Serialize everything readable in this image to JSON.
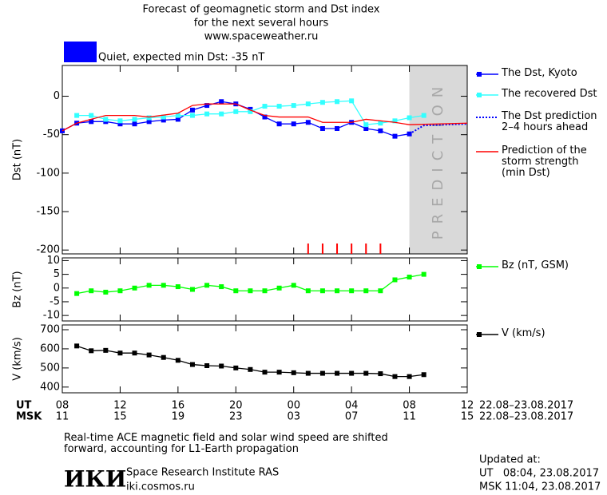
{
  "title": [
    "Forecast of geomagnetic storm and Dst index",
    "for the next several hours",
    "www.spaceweather.ru"
  ],
  "status": {
    "label": "Quiet, expected min Dst: -35 nT",
    "color": "#0000ff"
  },
  "chart_data": [
    {
      "type": "line",
      "y_label": "Dst (nT)",
      "xlim": [
        0,
        28
      ],
      "ylim": [
        -205,
        40
      ],
      "yticks": [
        0,
        -50,
        -100,
        -150,
        -200
      ],
      "prediction_region": {
        "xlim": [
          24,
          28
        ],
        "label": "PREDICTION",
        "color": "#d9d9d9"
      },
      "markers": {
        "color": "#ff0000",
        "x": [
          17,
          18,
          19,
          20,
          21,
          22
        ]
      },
      "series": [
        {
          "name": "The Dst, Kyoto",
          "color": "#0000ff",
          "marker": "square",
          "dash": "solid",
          "x": [
            0,
            1,
            2,
            3,
            4,
            5,
            6,
            7,
            8,
            9,
            10,
            11,
            12,
            13,
            14,
            15,
            16,
            17,
            18,
            19,
            20,
            21,
            22,
            23,
            24
          ],
          "values": [
            -45,
            -35,
            -33,
            -33,
            -36,
            -36,
            -33,
            -31,
            -30,
            -18,
            -12,
            -7,
            -10,
            -17,
            -27,
            -36,
            -36,
            -34,
            -42,
            -42,
            -34,
            -42,
            -45,
            -52,
            -49
          ]
        },
        {
          "name": "The recovered Dst",
          "color": "#33ffff",
          "marker": "square",
          "dash": "solid",
          "x": [
            1,
            2,
            3,
            4,
            5,
            6,
            7,
            8,
            9,
            10,
            11,
            12,
            13,
            14,
            15,
            16,
            17,
            18,
            19,
            20,
            21,
            22,
            23,
            24,
            25
          ],
          "values": [
            -25,
            -25,
            -30,
            -32,
            -30,
            -28,
            -27,
            -25,
            -25,
            -23,
            -23,
            -20,
            -20,
            -13,
            -13,
            -12,
            -10,
            -8,
            -7,
            -6,
            -37,
            -35,
            -32,
            -28,
            -25
          ]
        },
        {
          "name": "The Dst prediction\n2–4 hours ahead",
          "color": "#0000ff",
          "marker": "none",
          "dash": "dotted",
          "x": [
            24,
            25,
            28
          ],
          "values": [
            -49,
            -38,
            -36
          ]
        },
        {
          "name": "Prediction of the\nstorm strength\n(min Dst)",
          "color": "#ff0000",
          "marker": "none",
          "dash": "solid",
          "x": [
            0,
            1,
            2,
            3,
            5,
            6,
            8,
            9,
            10,
            12,
            13,
            14,
            15,
            17,
            18,
            20,
            21,
            23,
            24,
            28
          ],
          "values": [
            -45,
            -35,
            -30,
            -25,
            -25,
            -27,
            -22,
            -12,
            -10,
            -10,
            -18,
            -25,
            -27,
            -27,
            -34,
            -34,
            -30,
            -34,
            -37,
            -35
          ]
        }
      ]
    },
    {
      "type": "line",
      "y_label": "Bz (nT)",
      "xlim": [
        0,
        28
      ],
      "ylim": [
        -12,
        11
      ],
      "yticks": [
        10,
        5,
        0,
        -5,
        -10
      ],
      "series": [
        {
          "name": "Bz (nT, GSM)",
          "color": "#00ff00",
          "marker": "square",
          "dash": "solid",
          "x": [
            1,
            2,
            3,
            4,
            5,
            6,
            7,
            8,
            9,
            10,
            11,
            12,
            13,
            14,
            15,
            16,
            17,
            18,
            19,
            20,
            21,
            22,
            23,
            24,
            25
          ],
          "values": [
            -2,
            -1,
            -1.5,
            -1,
            0,
            1,
            1,
            0.5,
            -0.5,
            1,
            0.5,
            -1,
            -1,
            -1,
            0,
            1,
            -1,
            -1,
            -1,
            -1,
            -1,
            -1,
            3,
            4,
            5
          ]
        }
      ]
    },
    {
      "type": "line",
      "y_label": "V (km/s)",
      "xlim": [
        0,
        28
      ],
      "ylim": [
        370,
        725
      ],
      "yticks": [
        700,
        600,
        500,
        400
      ],
      "xticks_title": "UT",
      "xticks": [
        {
          "value": 0,
          "label": "08"
        },
        {
          "value": 4,
          "label": "12"
        },
        {
          "value": 8,
          "label": "16"
        },
        {
          "value": 12,
          "label": "20"
        },
        {
          "value": 16,
          "label": "00"
        },
        {
          "value": 20,
          "label": "04"
        },
        {
          "value": 24,
          "label": "08"
        },
        {
          "value": 28,
          "label": "12"
        }
      ],
      "xticks_msk_title": "MSK",
      "xticks_msk": [
        {
          "value": 0,
          "label": "11"
        },
        {
          "value": 4,
          "label": "15"
        },
        {
          "value": 8,
          "label": "19"
        },
        {
          "value": 12,
          "label": "23"
        },
        {
          "value": 16,
          "label": "03"
        },
        {
          "value": 20,
          "label": "07"
        },
        {
          "value": 24,
          "label": "11"
        },
        {
          "value": 28,
          "label": "15"
        }
      ],
      "date_range": "22.08–23.08.2017",
      "series": [
        {
          "name": "V (km/s)",
          "color": "#000000",
          "marker": "square",
          "dash": "solid",
          "x": [
            1,
            2,
            3,
            4,
            5,
            6,
            7,
            8,
            9,
            10,
            11,
            12,
            13,
            14,
            15,
            16,
            17,
            18,
            19,
            20,
            21,
            22,
            23,
            24,
            25
          ],
          "values": [
            615,
            590,
            592,
            578,
            578,
            568,
            555,
            540,
            518,
            512,
            510,
            500,
            492,
            478,
            478,
            475,
            472,
            472,
            472,
            472,
            472,
            470,
            455,
            455,
            465
          ]
        }
      ]
    }
  ],
  "note": "Real-time ACE magnetic field and solar wind speed are shifted\nforward, accounting for L1-Earth propagation",
  "institute": {
    "logo": "ИКИ",
    "name": "Space Research Institute RAS",
    "url": "iki.cosmos.ru"
  },
  "updated": {
    "label": "Updated at:",
    "ut": "UT   08:04, 23.08.2017",
    "msk": "MSK 11:04, 23.08.2017"
  }
}
